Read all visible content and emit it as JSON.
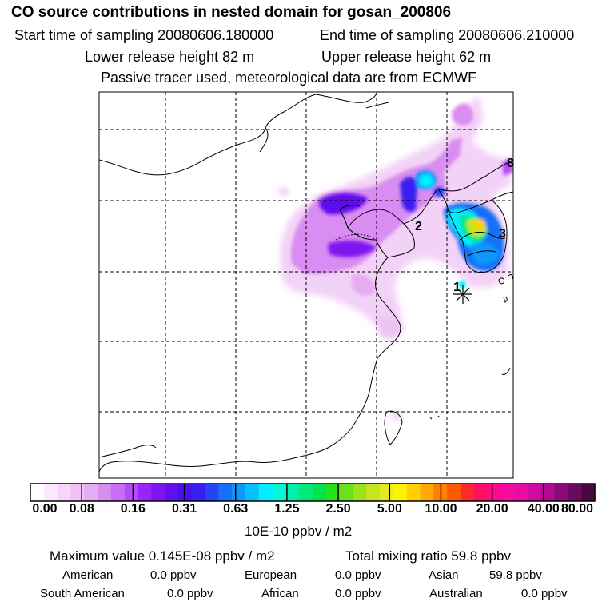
{
  "header": {
    "title": "CO  source contributions in nested domain for gosan_200806",
    "start_time": "Start time of sampling 20080606.180000",
    "end_time": "End time of sampling 20080606.210000",
    "lower_height": "Lower release height   82 m",
    "upper_height": "Upper release height   62 m",
    "tracer_note": "Passive tracer used, meteorological data are from ECMWF"
  },
  "map": {
    "region_labels": [
      {
        "name": "region-label-1",
        "text": "1"
      },
      {
        "name": "region-label-2",
        "text": "2"
      },
      {
        "name": "region-label-3",
        "text": "3"
      },
      {
        "name": "region-label-8",
        "text": "8"
      }
    ],
    "receptor_marker": "gosan-receptor-marker"
  },
  "colorbar": {
    "colors": [
      "#ffffff",
      "#fbe8fc",
      "#f6d6f8",
      "#efc2f5",
      "#e6acf2",
      "#d98cf1",
      "#c86ef5",
      "#b54cf9",
      "#9b24fb",
      "#7f14f2",
      "#6010ee",
      "#4a10f0",
      "#3a1ef2",
      "#2245f5",
      "#1770f8",
      "#0f98fb",
      "#08c1fb",
      "#00eeff",
      "#00f8d4",
      "#00f0a8",
      "#00e87a",
      "#00e14e",
      "#24e21a",
      "#6be01c",
      "#9ee21e",
      "#c6e51e",
      "#e7ea20",
      "#fff200",
      "#ffd000",
      "#ffaa00",
      "#ff8000",
      "#ff5a00",
      "#ff2a2a",
      "#ff1060",
      "#ff0a88",
      "#f80ca0",
      "#e80ca8",
      "#d00ca0",
      "#b00a90",
      "#8c0a78",
      "#6a0a60",
      "#4a0840"
    ],
    "labels": [
      "0.00",
      "0.08",
      "0.16",
      "0.31",
      "0.63",
      "1.25",
      "2.50",
      "5.00",
      "10.00",
      "20.00",
      "40.00",
      "80.00"
    ],
    "units": "10E-10 ppbv / m2"
  },
  "stats": {
    "maximum_value": "Maximum value  0.145E-08 ppbv / m2",
    "total_mixing": "Total mixing ratio       59.8 ppbv",
    "american": {
      "label": "American",
      "value": "0.0 ppbv"
    },
    "european": {
      "label": "European",
      "value": "0.0 ppbv"
    },
    "asian": {
      "label": "Asian",
      "value": "59.8 ppbv"
    },
    "south_american": {
      "label": "South American",
      "value": "0.0 ppbv"
    },
    "african": {
      "label": "African",
      "value": "0.0 ppbv"
    },
    "australian": {
      "label": "Australian",
      "value": "0.0 ppbv"
    }
  }
}
